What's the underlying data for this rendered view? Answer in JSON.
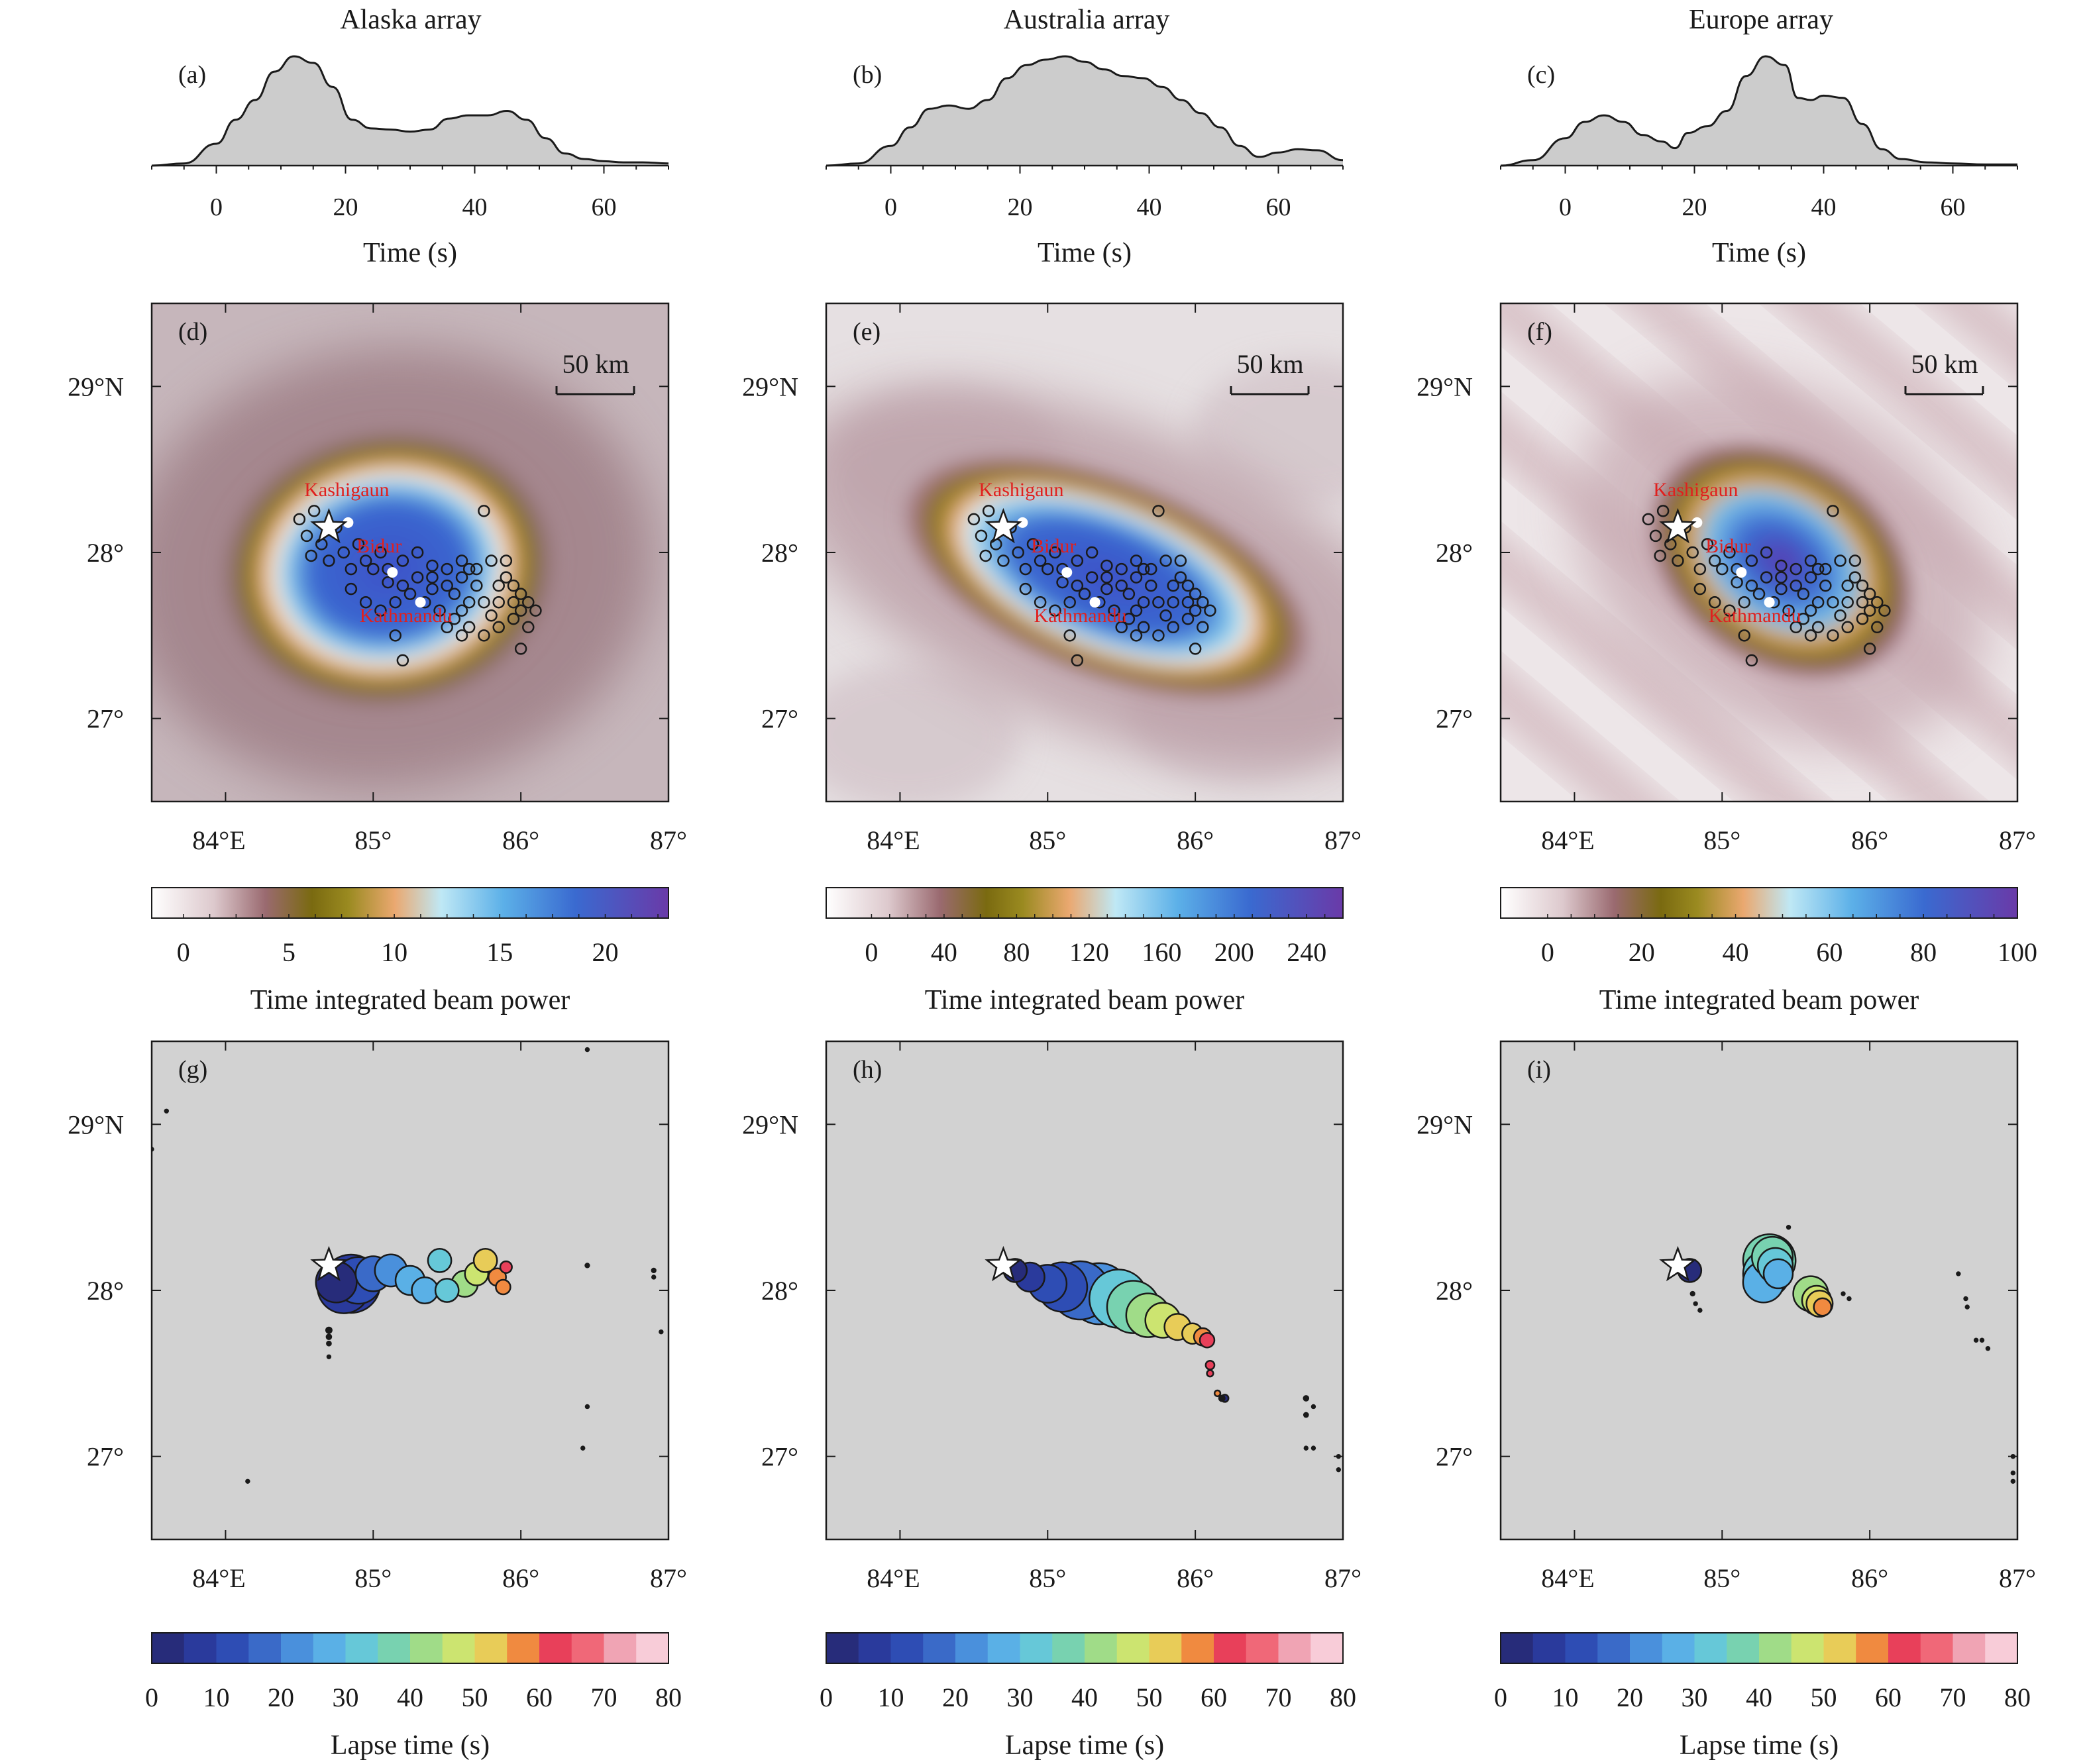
{
  "figure": {
    "columns": [
      {
        "title": "Alaska array"
      },
      {
        "title": "Australia array"
      },
      {
        "title": "Europe array"
      }
    ],
    "panel_letters": [
      "(a)",
      "(b)",
      "(c)",
      "(d)",
      "(e)",
      "(f)",
      "(g)",
      "(h)",
      "(i)"
    ],
    "labels": {
      "time_axis": "Time (s)",
      "power_axis": "Time integrated beam power",
      "lapse_axis": "Lapse time (s)",
      "scale_bar": "50 km",
      "town_1": "Kashigaun",
      "town_2": "Bidur",
      "town_3": "Kathmandu"
    },
    "colors": {
      "envelope_fill": "#cccccc",
      "map_bg": "#d2d2d2",
      "town_label": "#e0201e"
    }
  },
  "chart_data": [
    {
      "type": "area",
      "panel": "(a)",
      "title": "Alaska array",
      "xlabel": "Time (s)",
      "xlim": [
        -10,
        70
      ],
      "x_ticks": [
        0,
        20,
        40,
        60
      ],
      "x": [
        -10,
        -5,
        0,
        3,
        6,
        9,
        12,
        15,
        18,
        21,
        24,
        27,
        30,
        33,
        36,
        39,
        42,
        45,
        48,
        51,
        54,
        57,
        60,
        63,
        66,
        70
      ],
      "y": [
        0.0,
        0.02,
        0.2,
        0.42,
        0.6,
        0.86,
        1.0,
        0.94,
        0.72,
        0.42,
        0.34,
        0.33,
        0.31,
        0.33,
        0.43,
        0.46,
        0.46,
        0.5,
        0.42,
        0.25,
        0.11,
        0.06,
        0.04,
        0.03,
        0.03,
        0.02
      ]
    },
    {
      "type": "area",
      "panel": "(b)",
      "xlabel": "Time (s)",
      "xlim": [
        -10,
        70
      ],
      "x_ticks": [
        0,
        20,
        40,
        60
      ],
      "x": [
        -10,
        -5,
        0,
        3,
        6,
        9,
        12,
        15,
        18,
        21,
        24,
        27,
        30,
        33,
        36,
        39,
        42,
        45,
        48,
        51,
        54,
        57,
        60,
        63,
        66,
        70
      ],
      "y": [
        0.0,
        0.02,
        0.18,
        0.35,
        0.52,
        0.55,
        0.52,
        0.6,
        0.8,
        0.92,
        0.97,
        1.0,
        0.95,
        0.88,
        0.82,
        0.8,
        0.72,
        0.6,
        0.48,
        0.35,
        0.18,
        0.08,
        0.12,
        0.15,
        0.14,
        0.05
      ]
    },
    {
      "type": "area",
      "panel": "(c)",
      "xlabel": "Time (s)",
      "xlim": [
        -10,
        70
      ],
      "x_ticks": [
        0,
        20,
        40,
        60
      ],
      "x": [
        -10,
        -5,
        0,
        3,
        6,
        9,
        12,
        15,
        17,
        19,
        22,
        25,
        28,
        31,
        34,
        36,
        38,
        40,
        43,
        46,
        49,
        52,
        56,
        60,
        65,
        70
      ],
      "y": [
        0.0,
        0.05,
        0.25,
        0.4,
        0.46,
        0.4,
        0.28,
        0.22,
        0.16,
        0.3,
        0.36,
        0.5,
        0.82,
        1.0,
        0.92,
        0.62,
        0.6,
        0.64,
        0.62,
        0.38,
        0.15,
        0.06,
        0.03,
        0.02,
        0.01,
        0.01
      ]
    },
    {
      "type": "heatmap",
      "panel": "(d)",
      "lon_range": [
        83.5,
        87
      ],
      "lat_range": [
        26.5,
        29.5
      ],
      "x_ticks": [
        "84°E",
        "85°",
        "86°",
        "87°"
      ],
      "y_ticks": [
        "27°",
        "28°",
        "29°N"
      ],
      "colorbar": {
        "label": "Time integrated beam power",
        "ticks": [
          0,
          5,
          10,
          15,
          20
        ],
        "range": [
          -1.5,
          23
        ]
      },
      "peak_lon": 85.1,
      "peak_lat": 27.9
    },
    {
      "type": "heatmap",
      "panel": "(e)",
      "lon_range": [
        83.5,
        87
      ],
      "lat_range": [
        26.5,
        29.5
      ],
      "x_ticks": [
        "84°E",
        "85°",
        "86°",
        "87°"
      ],
      "y_ticks": [
        "27°",
        "28°",
        "29°N"
      ],
      "colorbar": {
        "label": "Time integrated beam power",
        "ticks": [
          0,
          40,
          80,
          120,
          160,
          200,
          240
        ],
        "range": [
          -25,
          260
        ]
      },
      "peak_lon": 85.4,
      "peak_lat": 27.85
    },
    {
      "type": "heatmap",
      "panel": "(f)",
      "lon_range": [
        83.5,
        87
      ],
      "lat_range": [
        26.5,
        29.5
      ],
      "x_ticks": [
        "84°E",
        "85°",
        "86°",
        "87°"
      ],
      "y_ticks": [
        "27°",
        "28°",
        "29°N"
      ],
      "colorbar": {
        "label": "Time integrated beam power",
        "ticks": [
          0,
          20,
          40,
          60,
          80,
          100
        ],
        "range": [
          -10,
          100
        ]
      },
      "peak_lon": 85.4,
      "peak_lat": 27.95
    },
    {
      "type": "scatter",
      "panel": "(g)",
      "lon_range": [
        83.5,
        87
      ],
      "lat_range": [
        26.5,
        29.5
      ],
      "x_ticks": [
        "84°E",
        "85°",
        "86°",
        "87°"
      ],
      "y_ticks": [
        "27°",
        "28°",
        "29°N"
      ],
      "colorbar": {
        "label": "Lapse time (s)",
        "ticks": [
          0,
          10,
          20,
          30,
          40,
          50,
          60,
          70,
          80
        ],
        "range": [
          0,
          80
        ]
      },
      "points": [
        [
          84.75,
          28.05,
          14,
          3
        ],
        [
          84.8,
          28.02,
          18,
          6
        ],
        [
          84.85,
          28.04,
          20,
          9
        ],
        [
          84.9,
          28.06,
          16,
          12
        ],
        [
          85.0,
          28.1,
          12,
          18
        ],
        [
          85.12,
          28.12,
          11,
          22
        ],
        [
          85.25,
          28.06,
          10,
          25
        ],
        [
          85.35,
          28.0,
          9,
          28
        ],
        [
          85.45,
          28.18,
          8,
          30
        ],
        [
          85.5,
          28.0,
          8,
          32
        ],
        [
          85.62,
          28.04,
          9,
          40
        ],
        [
          85.7,
          28.1,
          8,
          45
        ],
        [
          85.76,
          28.18,
          8,
          50
        ],
        [
          85.84,
          28.08,
          6,
          55
        ],
        [
          85.88,
          28.02,
          5,
          58
        ],
        [
          85.9,
          28.14,
          4,
          63
        ],
        [
          84.7,
          27.76,
          1.8,
          0
        ],
        [
          84.7,
          27.72,
          1.5,
          0
        ],
        [
          84.7,
          27.68,
          1.3,
          0
        ],
        [
          84.7,
          27.6,
          1,
          0
        ],
        [
          83.6,
          29.08,
          1,
          0
        ],
        [
          83.5,
          28.85,
          1,
          0
        ],
        [
          86.45,
          29.45,
          1,
          0
        ],
        [
          86.45,
          28.15,
          1.2,
          0
        ],
        [
          86.45,
          27.3,
          1,
          0
        ],
        [
          86.42,
          27.05,
          1,
          0
        ],
        [
          84.15,
          26.85,
          1,
          0
        ],
        [
          86.9,
          28.12,
          1.2,
          0
        ],
        [
          86.9,
          28.08,
          1,
          0
        ],
        [
          86.95,
          27.75,
          1,
          0
        ]
      ]
    },
    {
      "type": "scatter",
      "panel": "(h)",
      "lon_range": [
        83.5,
        87
      ],
      "lat_range": [
        26.5,
        29.5
      ],
      "x_ticks": [
        "84°E",
        "85°",
        "86°",
        "87°"
      ],
      "y_ticks": [
        "27°",
        "28°",
        "29°N"
      ],
      "colorbar": {
        "label": "Lapse time (s)",
        "ticks": [
          0,
          10,
          20,
          30,
          40,
          50,
          60,
          70,
          80
        ],
        "range": [
          0,
          80
        ]
      },
      "points": [
        [
          84.78,
          28.12,
          8,
          3
        ],
        [
          84.88,
          28.08,
          10,
          6
        ],
        [
          85.0,
          28.04,
          13,
          10
        ],
        [
          85.1,
          28.02,
          17,
          14
        ],
        [
          85.22,
          28.0,
          20,
          18
        ],
        [
          85.35,
          27.98,
          21,
          24
        ],
        [
          85.48,
          27.95,
          20,
          30
        ],
        [
          85.58,
          27.9,
          18,
          36
        ],
        [
          85.68,
          27.85,
          15,
          40
        ],
        [
          85.78,
          27.82,
          12,
          46
        ],
        [
          85.88,
          27.78,
          9,
          50
        ],
        [
          85.98,
          27.74,
          7,
          54
        ],
        [
          86.05,
          27.72,
          6,
          57
        ],
        [
          86.08,
          27.7,
          5,
          62
        ],
        [
          86.1,
          27.55,
          3,
          60
        ],
        [
          86.1,
          27.5,
          2.2,
          60
        ],
        [
          86.15,
          27.38,
          2,
          58
        ],
        [
          86.2,
          27.35,
          2.5,
          0
        ],
        [
          86.18,
          27.35,
          1.8,
          0
        ],
        [
          86.75,
          27.35,
          1.5,
          0
        ],
        [
          86.75,
          27.25,
          1.3,
          0
        ],
        [
          86.8,
          27.3,
          1,
          0
        ],
        [
          86.75,
          27.05,
          1,
          0
        ],
        [
          86.8,
          27.05,
          1,
          0
        ],
        [
          86.97,
          27.0,
          1,
          0
        ],
        [
          86.97,
          26.92,
          1,
          0
        ]
      ]
    },
    {
      "type": "scatter",
      "panel": "(i)",
      "lon_range": [
        83.5,
        87
      ],
      "lat_range": [
        26.5,
        29.5
      ],
      "x_ticks": [
        "84°E",
        "85°",
        "86°",
        "87°"
      ],
      "y_ticks": [
        "27°",
        "28°",
        "29°N"
      ],
      "colorbar": {
        "label": "Lapse time (s)",
        "ticks": [
          0,
          10,
          20,
          30,
          40,
          50,
          60,
          70,
          80
        ],
        "range": [
          0,
          80
        ]
      },
      "points": [
        [
          84.78,
          28.12,
          8,
          3
        ],
        [
          85.28,
          28.05,
          14,
          25
        ],
        [
          85.3,
          28.1,
          16,
          30
        ],
        [
          85.32,
          28.18,
          18,
          35
        ],
        [
          85.34,
          28.2,
          14,
          38
        ],
        [
          85.36,
          28.15,
          12,
          32
        ],
        [
          85.38,
          28.1,
          10,
          28
        ],
        [
          85.6,
          27.98,
          12,
          44
        ],
        [
          85.64,
          27.94,
          10,
          48
        ],
        [
          85.66,
          27.92,
          9,
          50
        ],
        [
          85.68,
          27.9,
          6,
          56
        ],
        [
          85.45,
          28.38,
          1,
          0
        ],
        [
          84.8,
          27.98,
          1.2,
          0
        ],
        [
          84.82,
          27.92,
          1,
          0
        ],
        [
          84.85,
          27.88,
          1,
          0
        ],
        [
          85.82,
          27.98,
          1,
          0
        ],
        [
          85.86,
          27.95,
          1,
          0
        ],
        [
          86.6,
          28.1,
          1,
          0
        ],
        [
          86.65,
          27.95,
          1,
          0
        ],
        [
          86.66,
          27.9,
          1,
          0
        ],
        [
          86.72,
          27.7,
          1,
          0
        ],
        [
          86.76,
          27.7,
          1,
          0
        ],
        [
          86.8,
          27.65,
          1,
          0
        ],
        [
          86.97,
          27.0,
          1,
          0
        ],
        [
          86.97,
          26.9,
          1,
          0
        ],
        [
          86.97,
          26.85,
          1,
          0
        ]
      ]
    }
  ],
  "mainshock": {
    "lon": 84.7,
    "lat": 28.15
  },
  "towns": [
    {
      "lon": 84.83,
      "lat": 28.18
    },
    {
      "lon": 85.13,
      "lat": 27.88
    },
    {
      "lon": 85.32,
      "lat": 27.7
    }
  ],
  "aftershocks": [
    [
      84.5,
      28.2
    ],
    [
      84.6,
      28.25
    ],
    [
      84.55,
      28.1
    ],
    [
      84.65,
      28.05
    ],
    [
      84.75,
      28.15
    ],
    [
      84.58,
      27.98
    ],
    [
      84.7,
      27.95
    ],
    [
      84.8,
      28.0
    ],
    [
      84.9,
      28.05
    ],
    [
      85.05,
      28.0
    ],
    [
      85.2,
      27.95
    ],
    [
      85.3,
      28.0
    ],
    [
      85.4,
      27.85
    ],
    [
      85.5,
      27.9
    ],
    [
      85.6,
      27.95
    ],
    [
      85.7,
      27.9
    ],
    [
      85.8,
      27.95
    ],
    [
      85.9,
      27.85
    ],
    [
      85.95,
      27.8
    ],
    [
      86.0,
      27.75
    ],
    [
      86.05,
      27.7
    ],
    [
      85.75,
      28.25
    ],
    [
      84.85,
      27.78
    ],
    [
      84.95,
      27.7
    ],
    [
      85.05,
      27.65
    ],
    [
      85.15,
      27.7
    ],
    [
      85.25,
      27.75
    ],
    [
      85.35,
      27.7
    ],
    [
      85.45,
      27.65
    ],
    [
      85.55,
      27.6
    ],
    [
      85.65,
      27.55
    ],
    [
      85.75,
      27.5
    ],
    [
      85.85,
      27.55
    ],
    [
      85.95,
      27.6
    ],
    [
      86.05,
      27.55
    ],
    [
      86.1,
      27.65
    ],
    [
      85.55,
      27.75
    ],
    [
      85.65,
      27.7
    ],
    [
      85.75,
      27.7
    ],
    [
      85.85,
      27.7
    ],
    [
      85.95,
      27.7
    ],
    [
      86.0,
      27.65
    ],
    [
      85.85,
      27.8
    ],
    [
      85.7,
      27.8
    ],
    [
      85.6,
      27.85
    ],
    [
      85.5,
      27.8
    ],
    [
      85.4,
      27.78
    ],
    [
      85.3,
      27.85
    ],
    [
      85.2,
      27.8
    ],
    [
      85.1,
      27.82
    ],
    [
      85.0,
      27.9
    ],
    [
      84.95,
      27.95
    ],
    [
      84.85,
      27.9
    ],
    [
      85.15,
      27.5
    ],
    [
      85.2,
      27.35
    ],
    [
      86.0,
      27.42
    ],
    [
      85.1,
      27.9
    ],
    [
      85.6,
      27.65
    ],
    [
      85.4,
      27.92
    ],
    [
      85.6,
      27.5
    ],
    [
      85.8,
      27.62
    ],
    [
      85.9,
      27.95
    ],
    [
      85.5,
      27.55
    ],
    [
      85.65,
      27.9
    ]
  ]
}
